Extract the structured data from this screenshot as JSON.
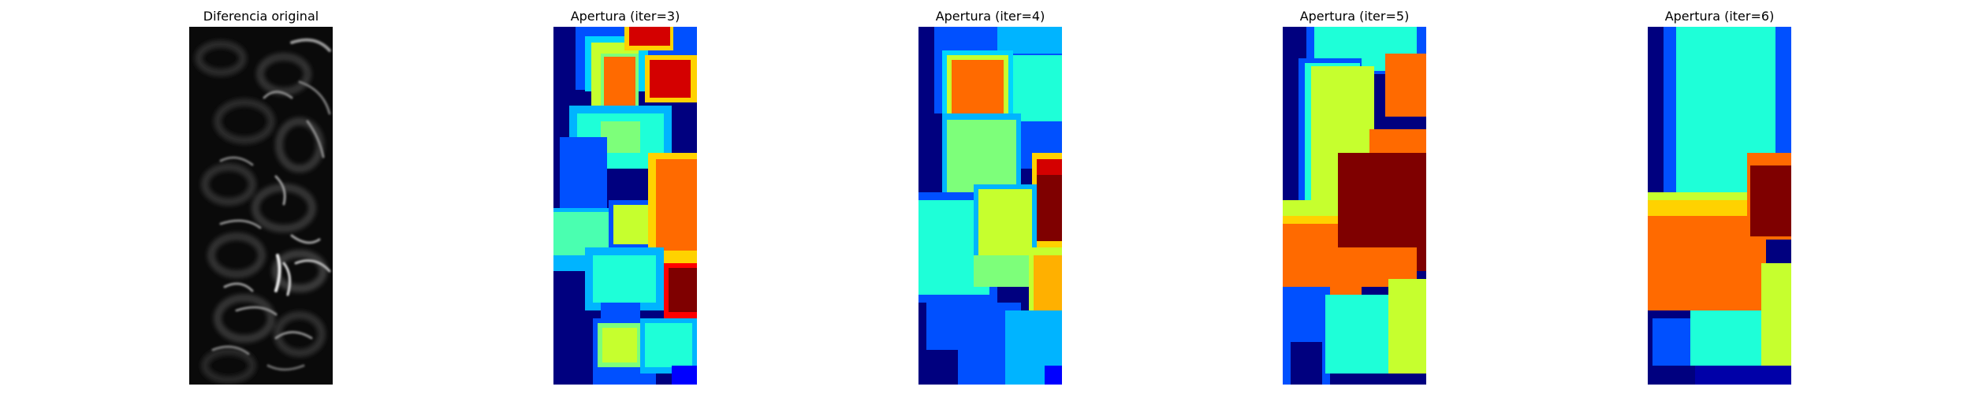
{
  "panels": [
    {
      "title": "Diferencia original",
      "image": "grayscale difference image"
    },
    {
      "title": "Apertura (iter=3)",
      "image": "jet colormap segmentation"
    },
    {
      "title": "Apertura (iter=4)",
      "image": "jet colormap segmentation"
    },
    {
      "title": "Apertura (iter=5)",
      "image": "jet colormap segmentation"
    },
    {
      "title": "Apertura (iter=6)",
      "image": "jet colormap segmentation"
    }
  ],
  "colors": {
    "background": "#ffffff",
    "jet_dark_blue": "#00007f",
    "jet_blue": "#0050ff",
    "jet_cyan": "#1effd8",
    "jet_green": "#7dff7a",
    "jet_yellow": "#c6ff2e",
    "jet_orange": "#ff6a00",
    "jet_red": "#d40000",
    "jet_dark_red": "#7f0000"
  }
}
